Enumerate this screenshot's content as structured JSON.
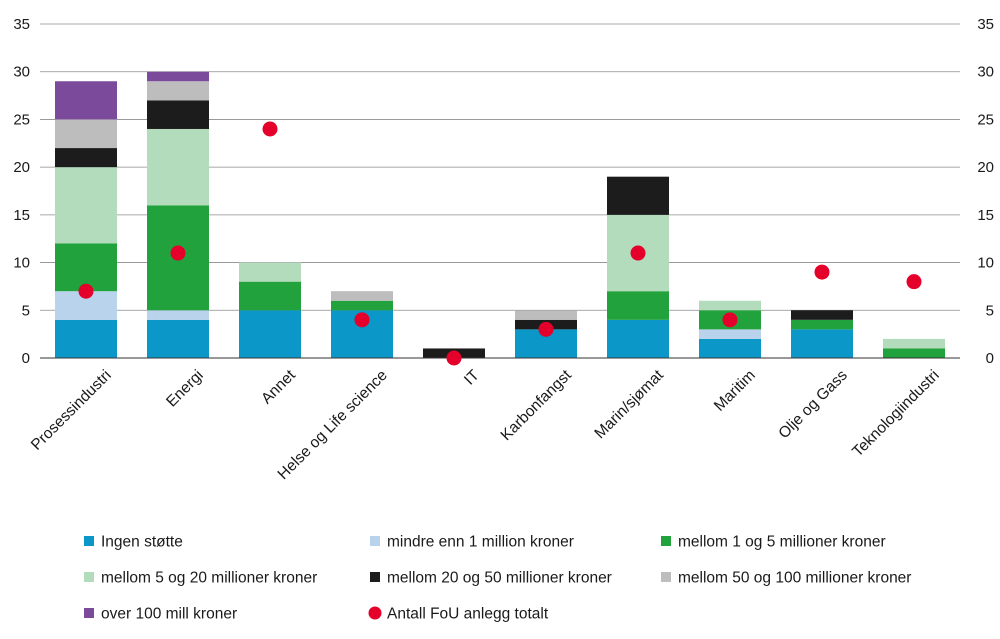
{
  "chart_data": {
    "type": "bar",
    "stacked": true,
    "title": "",
    "xlabel": "",
    "ylabel": "",
    "ylim": [
      0,
      35
    ],
    "yticks": [
      0,
      5,
      10,
      15,
      20,
      25,
      30,
      35
    ],
    "grid": true,
    "secondary_y_axis": true,
    "legend_position": "bottom",
    "categories": [
      "Prosessindustri",
      "Energi",
      "Annet",
      "Helse og Life science",
      "IT",
      "Karbonfangst",
      "Marin/sjømat",
      "Maritim",
      "Olje og Gass",
      "Teknologiindustri"
    ],
    "series": [
      {
        "name": "Ingen støtte",
        "color": "#0b98c8",
        "values": [
          4,
          4,
          5,
          5,
          0,
          3,
          4,
          2,
          3,
          0
        ]
      },
      {
        "name": "mindre enn 1 million kroner",
        "color": "#b9d3ec",
        "values": [
          3,
          1,
          0,
          0,
          0,
          0,
          0,
          1,
          0,
          0
        ]
      },
      {
        "name": "mellom 1 og 5 millioner kroner",
        "color": "#22a23c",
        "values": [
          5,
          11,
          3,
          1,
          0,
          0,
          3,
          2,
          1,
          1
        ]
      },
      {
        "name": "mellom 5 og 20 millioner kroner",
        "color": "#b2dcbc",
        "values": [
          8,
          8,
          2,
          0,
          0,
          0,
          8,
          1,
          0,
          1
        ]
      },
      {
        "name": "mellom 20 og 50 millioner kroner",
        "color": "#1c1c1c",
        "values": [
          2,
          3,
          0,
          0,
          1,
          1,
          4,
          0,
          1,
          0
        ]
      },
      {
        "name": "mellom 50 og 100 millioner kroner",
        "color": "#bdbdbd",
        "values": [
          3,
          2,
          0,
          1,
          0,
          1,
          0,
          0,
          0,
          0
        ]
      },
      {
        "name": "over 100 mill kroner",
        "color": "#7b4a9a",
        "values": [
          4,
          1,
          0,
          0,
          0,
          0,
          0,
          0,
          0,
          0
        ]
      }
    ],
    "points": {
      "name": "Antall FoU anlegg totalt",
      "color": "#e4002b",
      "values": [
        7,
        11,
        24,
        4,
        0,
        3,
        11,
        4,
        9,
        8
      ]
    }
  }
}
